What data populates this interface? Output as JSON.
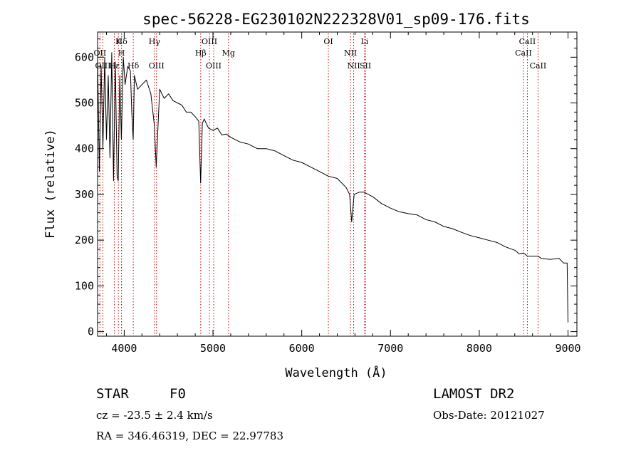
{
  "chart_data": {
    "type": "line",
    "title": "spec-56228-EG230102N222328V01_sp09-176.fits",
    "xlabel": "Wavelength (Å)",
    "ylabel": "Flux (relative)",
    "xlim": [
      3700,
      9100
    ],
    "ylim": [
      -10,
      655
    ],
    "xticks": [
      4000,
      5000,
      6000,
      7000,
      8000,
      9000
    ],
    "yticks": [
      0,
      100,
      200,
      300,
      400,
      500,
      600
    ],
    "grid": false,
    "line_color": "#000000",
    "marker_color": "#cc0000",
    "series": [
      {
        "x": [
          3700,
          3720,
          3740,
          3760,
          3780,
          3800,
          3820,
          3840,
          3860,
          3880,
          3900,
          3920,
          3933,
          3950,
          3968,
          3990,
          4010,
          4040,
          4070,
          4085,
          4101,
          4115,
          4150,
          4200,
          4250,
          4300,
          4340,
          4360,
          4400,
          4450,
          4500,
          4550,
          4600,
          4650,
          4700,
          4750,
          4800,
          4840,
          4861,
          4880,
          4900,
          4950,
          5000,
          5050,
          5100,
          5150,
          5200,
          5300,
          5400,
          5500,
          5600,
          5700,
          5800,
          5900,
          6000,
          6100,
          6200,
          6300,
          6400,
          6500,
          6540,
          6563,
          6590,
          6650,
          6700,
          6800,
          6900,
          7000,
          7100,
          7200,
          7300,
          7400,
          7500,
          7600,
          7700,
          7800,
          7900,
          8000,
          8100,
          8200,
          8300,
          8400,
          8450,
          8498,
          8542,
          8600,
          8662,
          8700,
          8800,
          8900,
          8950,
          8990,
          9000
        ],
        "values": [
          600,
          350,
          580,
          400,
          600,
          420,
          560,
          380,
          610,
          330,
          590,
          340,
          330,
          560,
          420,
          600,
          540,
          580,
          570,
          480,
          420,
          560,
          530,
          540,
          550,
          520,
          450,
          360,
          530,
          510,
          520,
          505,
          500,
          495,
          480,
          480,
          470,
          460,
          325,
          455,
          465,
          445,
          440,
          445,
          430,
          432,
          425,
          415,
          410,
          400,
          400,
          395,
          385,
          375,
          370,
          360,
          350,
          340,
          335,
          315,
          300,
          240,
          300,
          305,
          305,
          295,
          280,
          270,
          262,
          258,
          255,
          245,
          240,
          230,
          225,
          217,
          210,
          205,
          200,
          195,
          185,
          178,
          170,
          172,
          165,
          165,
          165,
          160,
          158,
          160,
          150,
          150,
          20
        ]
      }
    ],
    "lines": [
      {
        "name": "Hδ",
        "wavelength": 3970,
        "row": 1
      },
      {
        "name": "K",
        "wavelength": 3934,
        "row": 1
      },
      {
        "name": "H",
        "wavelength": 3969,
        "row": 2
      },
      {
        "name": "OII",
        "wavelength": 3727,
        "row": 2
      },
      {
        "name": "OIII",
        "wavelength": 3760,
        "row": 3
      },
      {
        "name": "Hε",
        "wavelength": 3889,
        "row": 3
      },
      {
        "name": "Hδ",
        "wavelength": 4102,
        "row": 3
      },
      {
        "name": "Hγ",
        "wavelength": 4341,
        "row": 1
      },
      {
        "name": "OIII",
        "wavelength": 4364,
        "row": 3
      },
      {
        "name": "OIII",
        "wavelength": 4960,
        "row": 1
      },
      {
        "name": "Hβ",
        "wavelength": 4862,
        "row": 2
      },
      {
        "name": "OIII",
        "wavelength": 5008,
        "row": 3
      },
      {
        "name": "Mg",
        "wavelength": 5175,
        "row": 2
      },
      {
        "name": "OI",
        "wavelength": 6300,
        "row": 1
      },
      {
        "name": "NII",
        "wavelength": 6549,
        "row": 2
      },
      {
        "name": "NII",
        "wavelength": 6585,
        "row": 3
      },
      {
        "name": "Li",
        "wavelength": 6708,
        "row": 1
      },
      {
        "name": "SII",
        "wavelength": 6718,
        "row": 3
      },
      {
        "name": "CaII",
        "wavelength": 8542,
        "row": 1
      },
      {
        "name": "CaII",
        "wavelength": 8498,
        "row": 2
      },
      {
        "name": "CaII",
        "wavelength": 8662,
        "row": 3
      }
    ]
  },
  "info": {
    "class": "STAR",
    "subclass": "F0",
    "redshift": "cz = -23.5 ± 2.4 km/s",
    "coords": "RA = 346.46319, DEC =  22.97783",
    "survey": "LAMOST DR2",
    "obs_date": "Obs-Date: 20121027"
  }
}
